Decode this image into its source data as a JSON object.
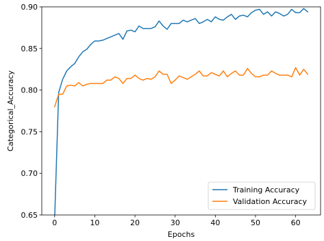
{
  "chart_data": {
    "type": "line",
    "xlabel": "Epochs",
    "ylabel": "Categorical_Accuracy",
    "xlim": [
      -3.2,
      66.2
    ],
    "ylim": [
      0.65,
      0.9
    ],
    "xticks": [
      0,
      10,
      20,
      30,
      40,
      50,
      60
    ],
    "xtick_labels": [
      "0",
      "10",
      "20",
      "30",
      "40",
      "50",
      "60"
    ],
    "yticks": [
      0.65,
      0.7,
      0.75,
      0.8,
      0.85,
      0.9
    ],
    "ytick_labels": [
      "0.65",
      "0.70",
      "0.75",
      "0.80",
      "0.85",
      "0.90"
    ],
    "grid": false,
    "legend_position": "lower-right",
    "x": [
      0,
      1,
      2,
      3,
      4,
      5,
      6,
      7,
      8,
      9,
      10,
      11,
      12,
      13,
      14,
      15,
      16,
      17,
      18,
      19,
      20,
      21,
      22,
      23,
      24,
      25,
      26,
      27,
      28,
      29,
      30,
      31,
      32,
      33,
      34,
      35,
      36,
      37,
      38,
      39,
      40,
      41,
      42,
      43,
      44,
      45,
      46,
      47,
      48,
      49,
      50,
      51,
      52,
      53,
      54,
      55,
      56,
      57,
      58,
      59,
      60,
      61,
      62,
      63
    ],
    "series": [
      {
        "name": "Training Accuracy",
        "color": "#1f77b4",
        "values": [
          0.645,
          0.797,
          0.813,
          0.823,
          0.828,
          0.832,
          0.84,
          0.846,
          0.849,
          0.855,
          0.859,
          0.859,
          0.86,
          0.862,
          0.864,
          0.866,
          0.868,
          0.861,
          0.871,
          0.872,
          0.87,
          0.877,
          0.874,
          0.874,
          0.874,
          0.876,
          0.883,
          0.877,
          0.873,
          0.88,
          0.88,
          0.88,
          0.884,
          0.882,
          0.884,
          0.886,
          0.88,
          0.882,
          0.885,
          0.882,
          0.888,
          0.885,
          0.884,
          0.888,
          0.891,
          0.885,
          0.889,
          0.89,
          0.888,
          0.893,
          0.896,
          0.897,
          0.891,
          0.894,
          0.889,
          0.894,
          0.892,
          0.889,
          0.891,
          0.897,
          0.893,
          0.893,
          0.898,
          0.894
        ]
      },
      {
        "name": "Validation Accuracy",
        "color": "#ff7f0e",
        "values": [
          0.78,
          0.795,
          0.795,
          0.805,
          0.806,
          0.805,
          0.809,
          0.805,
          0.807,
          0.808,
          0.808,
          0.808,
          0.808,
          0.812,
          0.812,
          0.816,
          0.814,
          0.808,
          0.814,
          0.814,
          0.818,
          0.814,
          0.812,
          0.814,
          0.813,
          0.816,
          0.823,
          0.819,
          0.819,
          0.808,
          0.812,
          0.817,
          0.815,
          0.813,
          0.816,
          0.819,
          0.823,
          0.817,
          0.817,
          0.821,
          0.819,
          0.817,
          0.823,
          0.816,
          0.82,
          0.823,
          0.818,
          0.818,
          0.826,
          0.82,
          0.816,
          0.816,
          0.818,
          0.818,
          0.823,
          0.82,
          0.818,
          0.818,
          0.818,
          0.816,
          0.827,
          0.818,
          0.825,
          0.819
        ]
      }
    ]
  }
}
